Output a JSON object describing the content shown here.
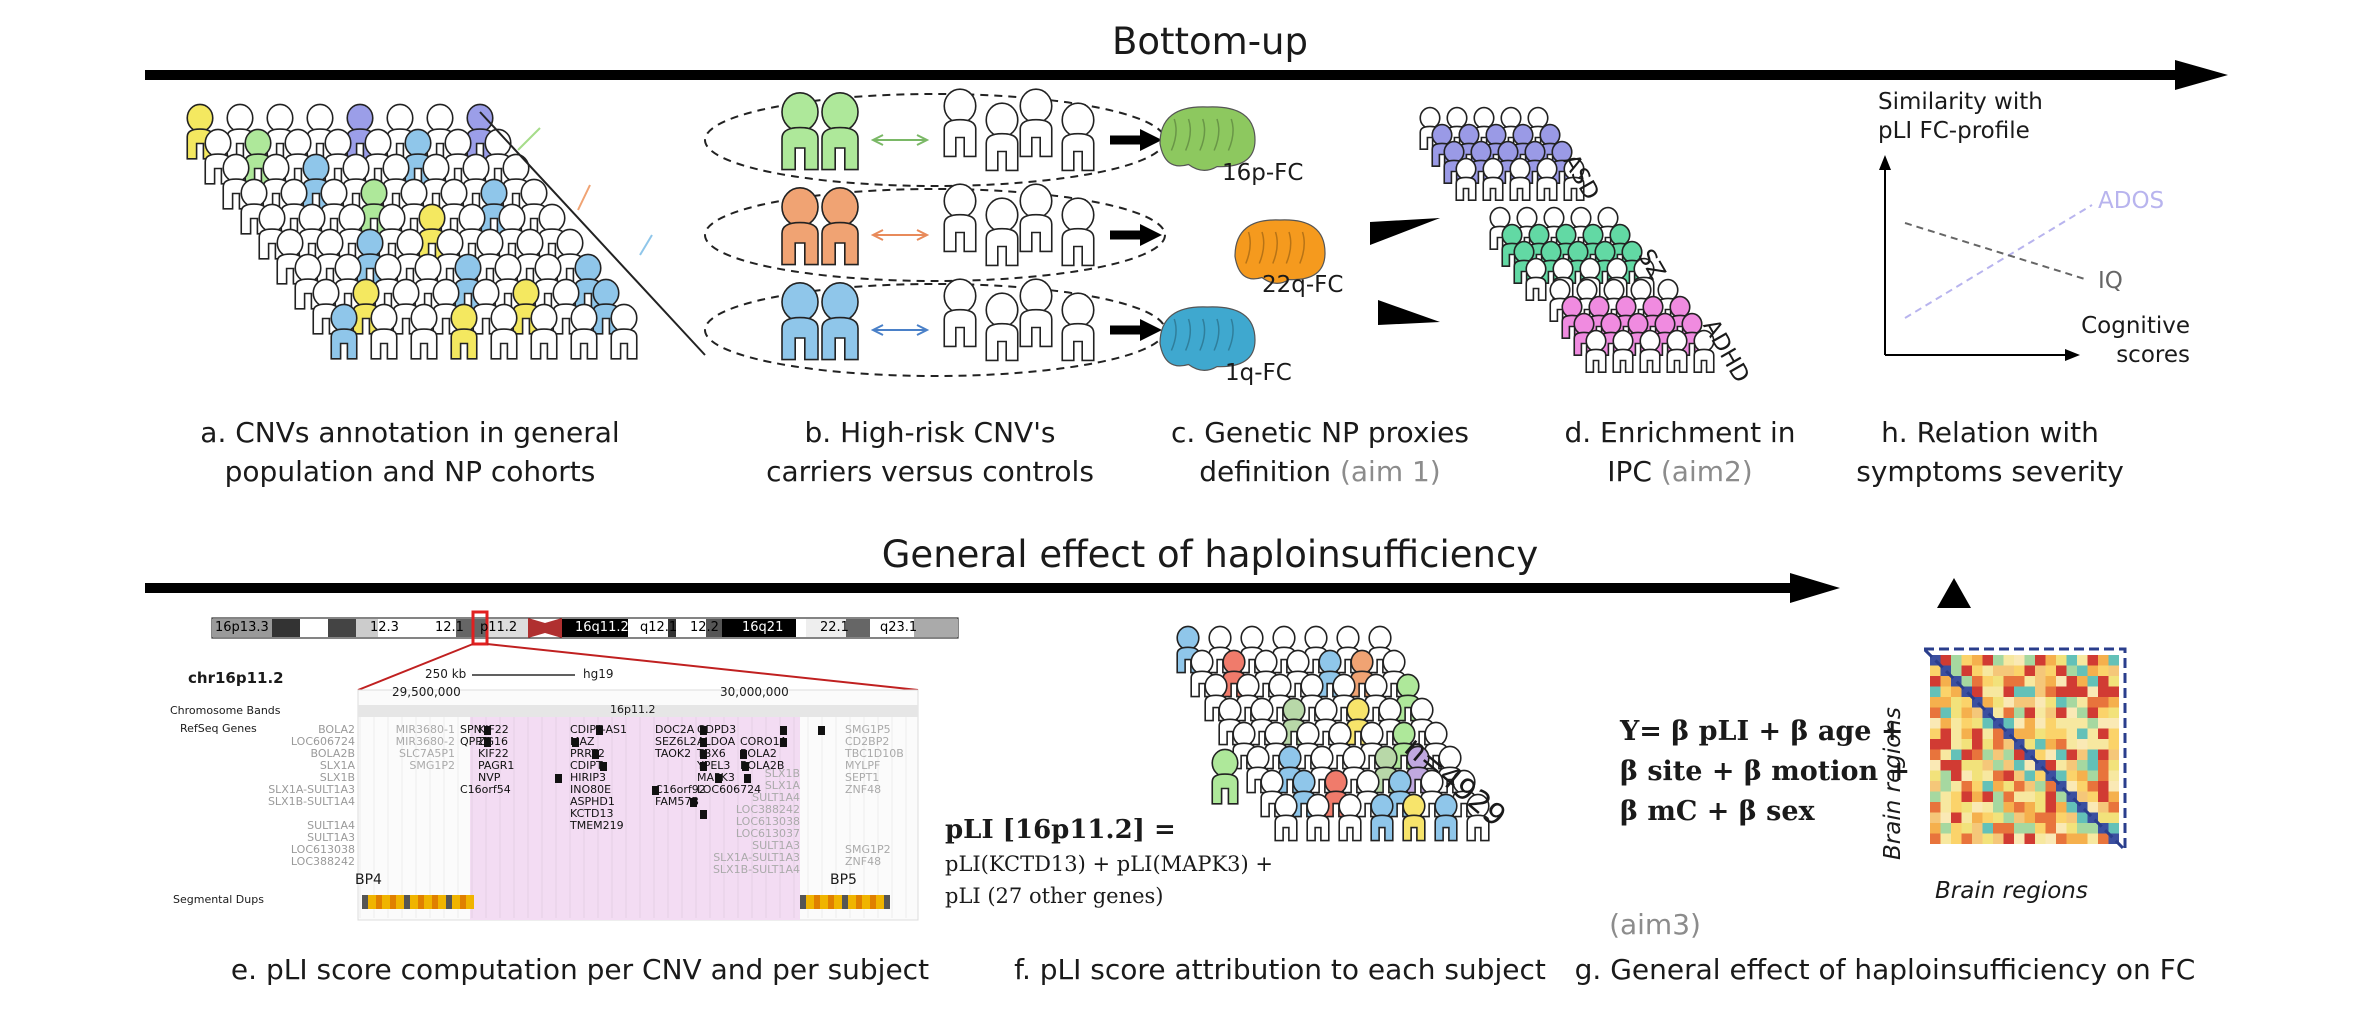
{
  "top": {
    "title": "Bottom-up",
    "a": {
      "line1": "a. CNVs annotation in general",
      "line2": "population and NP cohorts"
    },
    "b": {
      "line1": "b. High-risk CNV's",
      "line2": "carriers versus controls"
    },
    "c": {
      "line1": "c. Genetic NP proxies",
      "line2": "definition ",
      "aim": "(aim 1)",
      "brains": [
        "16p-FC",
        "22q-FC",
        "1q-FC"
      ]
    },
    "d": {
      "line1": "d. Enrichment in",
      "line2": "IPC ",
      "aim": "(aim2)",
      "groups": [
        "ASD",
        "SZ",
        "ADHD"
      ]
    },
    "h": {
      "line1": "h. Relation with",
      "line2": "symptoms severity",
      "ylabel1": "Similarity with",
      "ylabel2": "pLI FC-profile",
      "xlabel1": "Cognitive",
      "xlabel2": "scores",
      "lines": [
        "ADOS",
        "IQ"
      ]
    }
  },
  "bottom": {
    "title": "General effect of haploinsufficiency",
    "e": {
      "caption": "e. pLI score computation per CNV and per subject",
      "ideogram": [
        "16p13.3",
        "12.3",
        "12.1",
        "p11.2",
        "16q11.2",
        "q12.1",
        "12.2",
        "16q21",
        "22.1",
        "q23.1"
      ],
      "chr": "chr16p11.2",
      "scale": "250 kb",
      "build": "hg19",
      "pos1": "29,500,000",
      "pos2": "30,000,000",
      "track_chrom": "Chromosome Bands",
      "track_band": "16p11.2",
      "track_refseq": "RefSeq Genes",
      "track_segdup": "Segmental Dups",
      "bp4": "BP4",
      "bp5": "BP5",
      "genes_left": [
        "BOLA2",
        "LOC606724",
        "BOLA2B",
        "SLX1A",
        "SLX1B",
        "SLX1A-SULT1A3",
        "SLX1B-SULT1A4",
        "",
        "SULT1A4",
        "SULT1A3",
        "LOC613038",
        "LOC388242"
      ],
      "genes_left2": [
        "MIR3680-1",
        "MIR3680-2",
        "SLC7A5P1",
        "SMG1P2"
      ],
      "genes_mid1": [
        "SPN",
        "QPRT",
        "",
        "",
        "",
        "C16orf54"
      ],
      "genes_mid2": [
        "KIF22",
        "ZG16",
        "KIF22",
        "PAGR1",
        "NVP"
      ],
      "genes_mid3": [
        "CDIPT-AS1",
        "MAZ",
        "PRRT2",
        "CDIPT",
        "HIRIP3",
        "INO80E",
        "ASPHD1",
        "KCTD13",
        "TMEM219"
      ],
      "genes_mid4": [
        "DOC2A",
        "SEZ6L2",
        "TAOK2",
        "",
        "",
        "C16orf92",
        "FAM57B"
      ],
      "genes_mid5": [
        "GDPD3",
        "ALDOA",
        "TBX6",
        "YPEL3",
        "MAPK3",
        "LOC606724"
      ],
      "genes_mid6": [
        "",
        "CORO1A",
        "BOLA2",
        "BOLA2B"
      ],
      "genes_right": [
        "SMG1P5",
        "CD2BP2",
        "TBC1D10B",
        "MYLPF",
        "SEPT1",
        "ZNF48",
        "",
        "",
        "",
        "",
        "SMG1P2",
        "ZNF48"
      ],
      "genes_right2": [
        "SLX1B",
        "SLX1A",
        "SULT1A4",
        "LOC388242",
        "LOC613038",
        "LOC613037",
        "SULT1A3",
        "SLX1A-SULT1A3",
        "SLX1B-SULT1A4"
      ]
    },
    "f": {
      "caption": "f. pLI score attribution to each subject",
      "count": "n=4929",
      "formula_title": "pLI [16p11.2] =",
      "formula_l2": "pLI(KCTD13) + pLI(MAPK3) +",
      "formula_l3": "pLI (27 other genes)"
    },
    "g": {
      "caption": "g. General effect of haploinsufficiency on FC",
      "aim": "(aim3)",
      "eq1": "Y= β pLI + β age +",
      "eq2": "β site + β motion +",
      "eq3": "β mC + β sex",
      "matrix_x": "Brain regions",
      "matrix_y": "Brain regions"
    }
  },
  "colors": {
    "yellow": "#f4e860",
    "green": "#aee89a",
    "blue": "#8fc6ea",
    "purple": "#9b9ee8",
    "orange": "#f0a373",
    "brain_green": "#8dc85f",
    "brain_orange": "#f59a1e",
    "brain_blue": "#3fa8cf",
    "asd": "#9a9ae6",
    "sz": "#62d9a4",
    "adhd": "#f08be0",
    "matrix_diag": "#3b4fa0",
    "highlight_pink": "#f3dcf3",
    "ados": "#b8b4ee"
  }
}
